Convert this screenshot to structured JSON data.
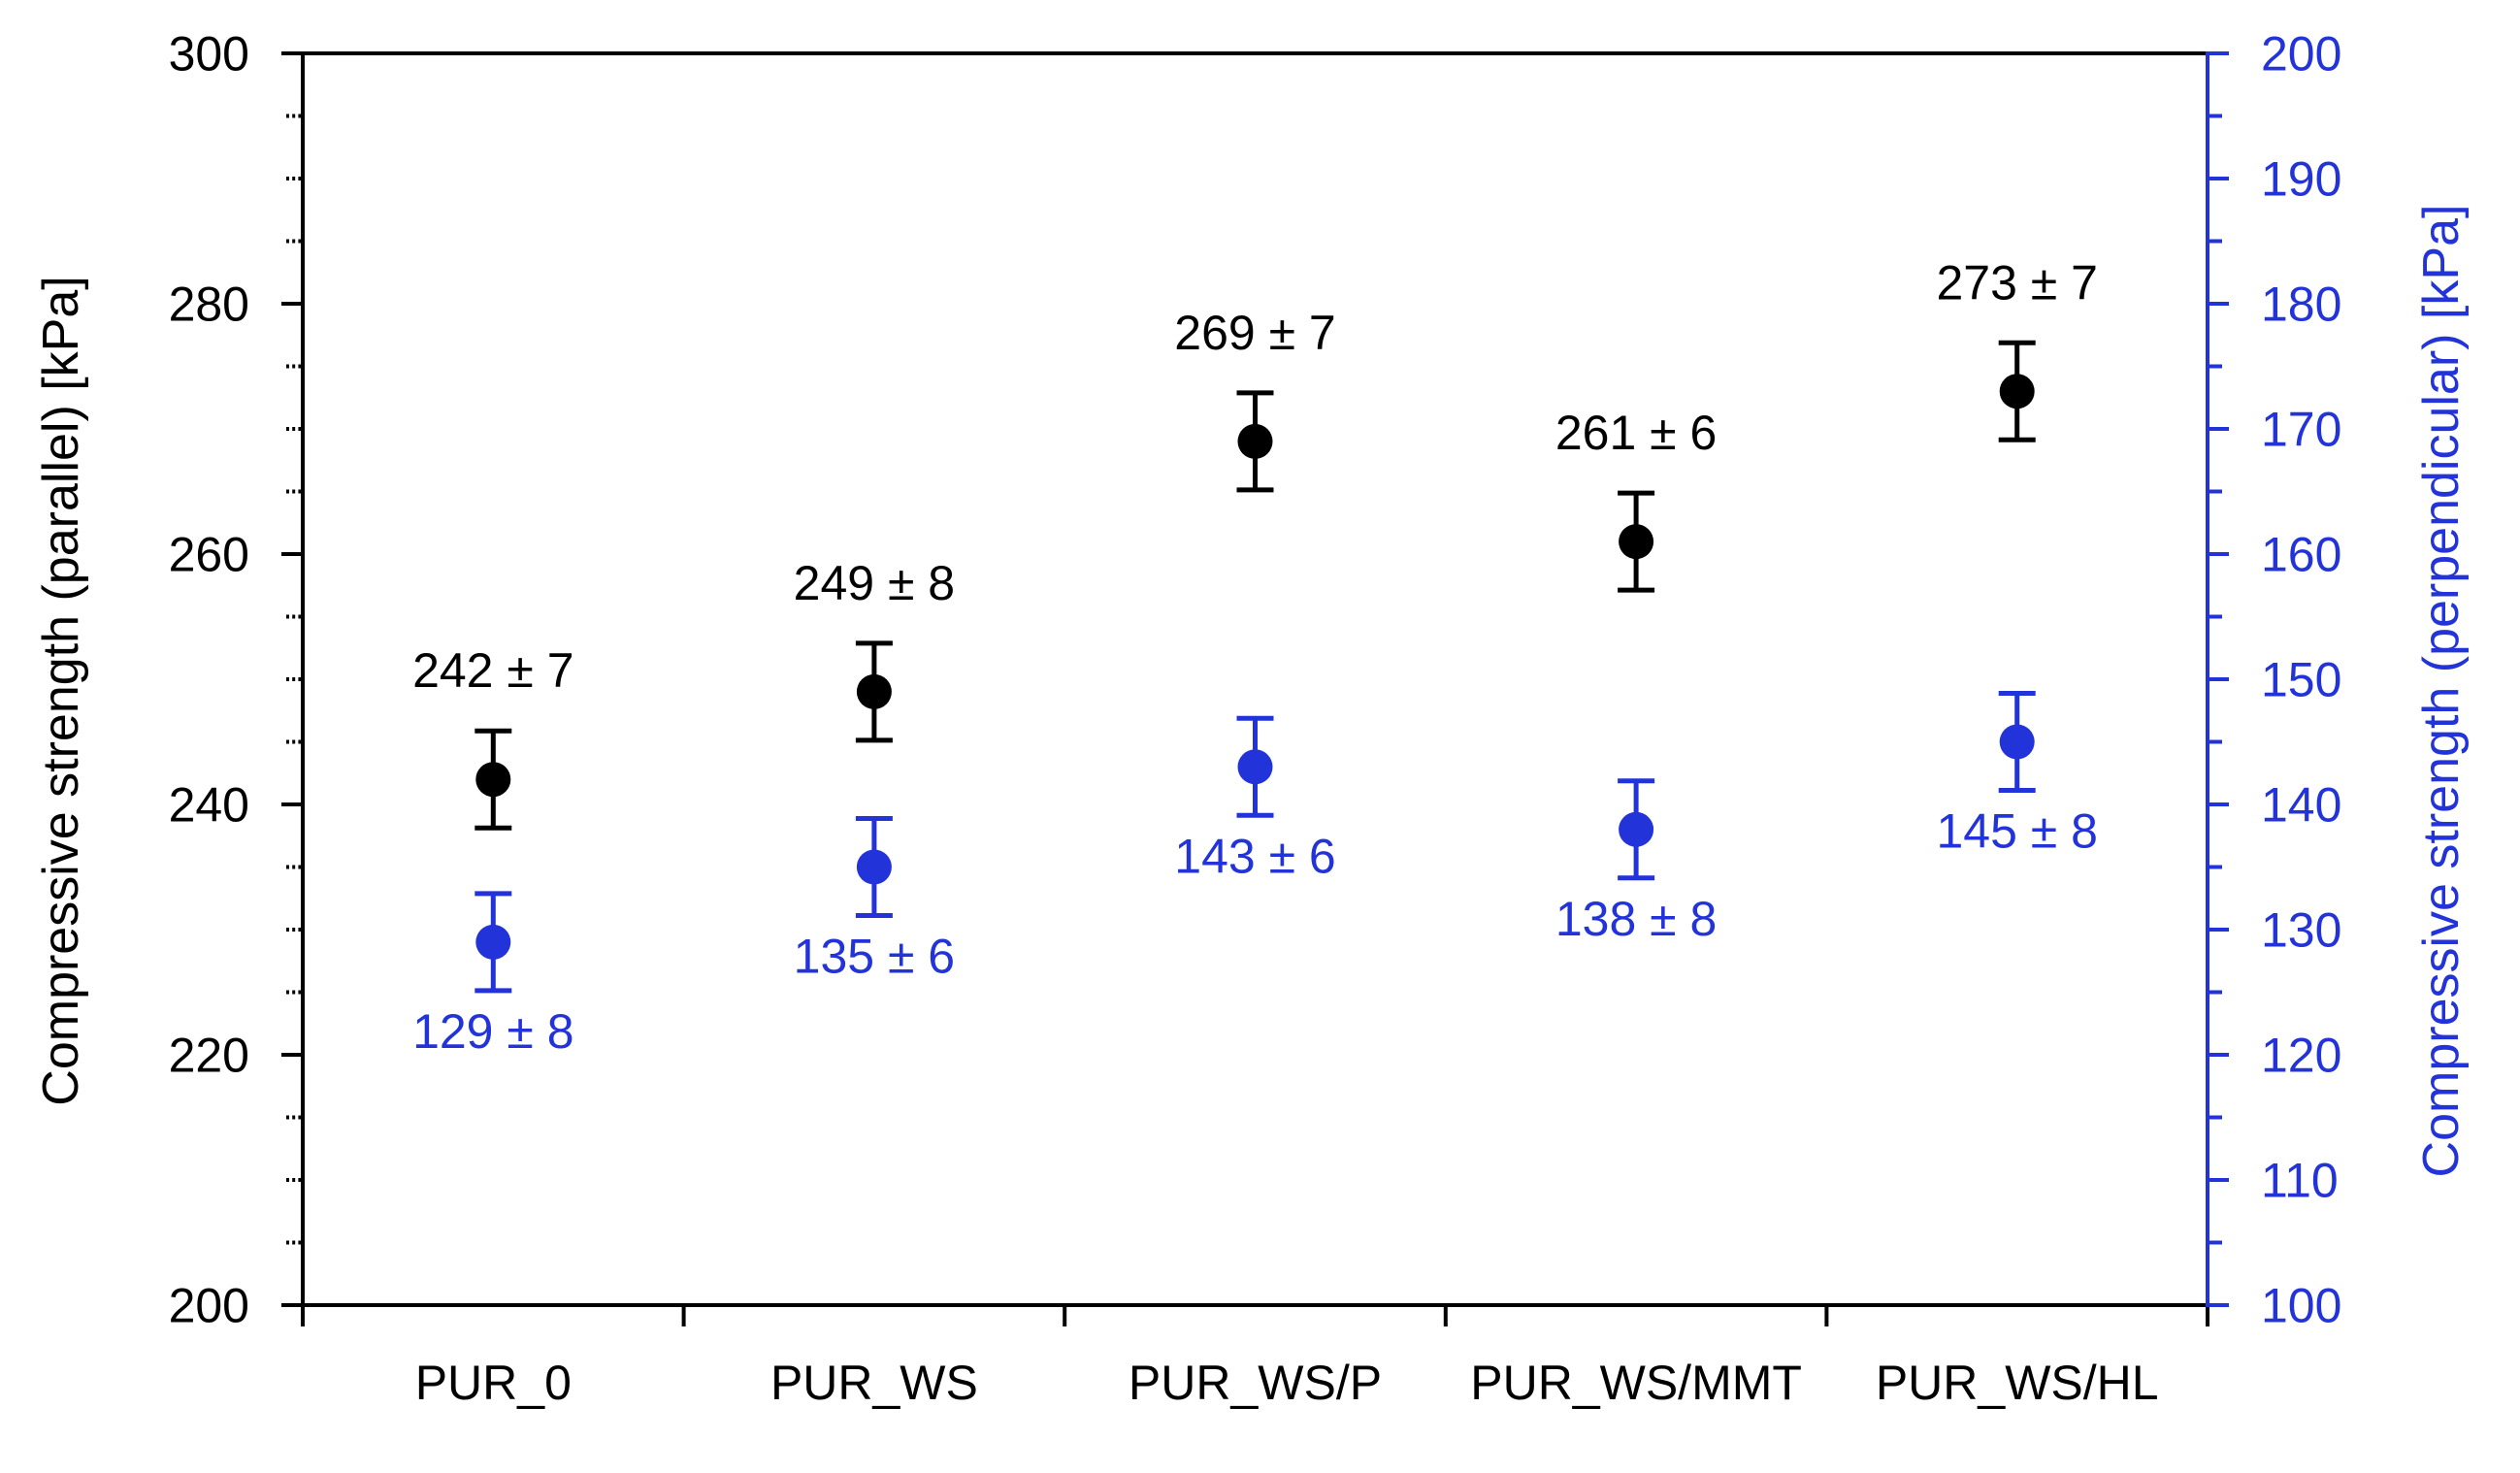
{
  "chart_data": {
    "type": "scatter",
    "categories": [
      "PUR_0",
      "PUR_WS",
      "PUR_WS/P",
      "PUR_WS/MMT",
      "PUR_WS/HL"
    ],
    "series": [
      {
        "name": "Compressive strength (parallel)",
        "axis": "left",
        "marker": "filled-circle",
        "color": "#000000",
        "values": [
          242,
          249,
          269,
          261,
          273
        ],
        "errors": [
          7,
          8,
          7,
          6,
          7
        ],
        "point_labels": [
          "242 ± 7",
          "249 ± 8",
          "269 ± 7",
          "261 ± 6",
          "273 ± 7"
        ],
        "label_position": "above"
      },
      {
        "name": "Compressive strength (perpendicular)",
        "axis": "right",
        "marker": "filled-circle",
        "color": "#2233d9",
        "values": [
          129,
          135,
          143,
          138,
          145
        ],
        "errors": [
          8,
          6,
          6,
          8,
          8
        ],
        "point_labels": [
          "129 ± 8",
          "135 ± 6",
          "143 ± 6",
          "138 ± 8",
          "145 ± 8"
        ],
        "label_position": "below"
      }
    ],
    "left_axis": {
      "label": "Compressive strength (parallel) [kPa]",
      "min": 200,
      "max": 300,
      "major_tick_step": 20,
      "minor_tick_step": 5,
      "tick_labels": [
        300,
        280,
        260,
        240,
        220,
        200
      ],
      "color": "#000000"
    },
    "right_axis": {
      "label": "Compressive strength (perpendicular) [kPa]",
      "min": 100,
      "max": 200,
      "major_tick_step": 10,
      "minor_tick_step": 5,
      "tick_labels": [
        200,
        190,
        180,
        170,
        160,
        150,
        140,
        130,
        120,
        110,
        100
      ],
      "color": "#2233d9"
    },
    "x_axis": {
      "color": "#000000"
    },
    "grid": false,
    "legend": "none",
    "background": "#ffffff"
  }
}
